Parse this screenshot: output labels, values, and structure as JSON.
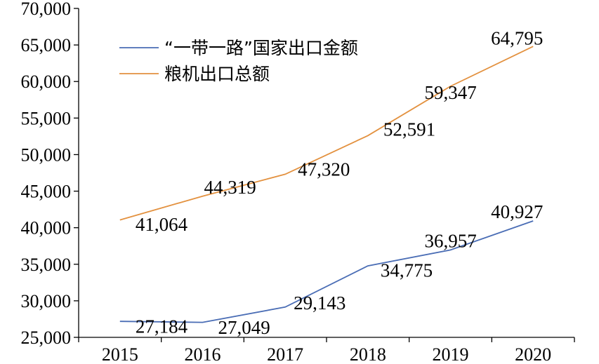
{
  "chart_data": {
    "type": "line",
    "categories": [
      "2015",
      "2016",
      "2017",
      "2018",
      "2019",
      "2020"
    ],
    "series": [
      {
        "name": "“一带一路”国家出口金额",
        "values": [
          27184,
          27049,
          29143,
          34775,
          36957,
          40927
        ],
        "labels": [
          "27,184",
          "27,049",
          "29,143",
          "34,775",
          "36,957",
          "40,927"
        ],
        "color": "#4a6db5"
      },
      {
        "name": "粮机出口总额",
        "values": [
          41064,
          44319,
          47320,
          52591,
          59347,
          64795
        ],
        "labels": [
          "41,064",
          "44,319",
          "47,320",
          "52,591",
          "59,347",
          "64,795"
        ],
        "color": "#e3913f"
      }
    ],
    "ylim": [
      25000,
      70000
    ],
    "yticks": [
      25000,
      30000,
      35000,
      40000,
      45000,
      50000,
      55000,
      60000,
      65000,
      70000
    ],
    "ytick_labels": [
      "25,000",
      "30,000",
      "35,000",
      "40,000",
      "45,000",
      "50,000",
      "55,000",
      "60,000",
      "65,000",
      "70,000"
    ],
    "title": "",
    "xlabel": "",
    "ylabel": "",
    "grid": false,
    "legend": "top-center"
  }
}
